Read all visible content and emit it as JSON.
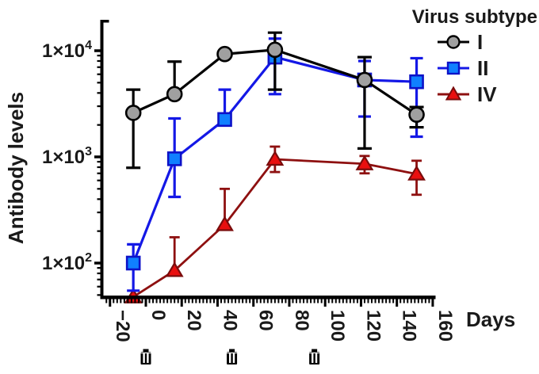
{
  "figure": {
    "x_axis_title": "Days",
    "y_axis_title": "Antibody levels"
  },
  "legend": {
    "title": "Virus subtype",
    "position": "top-right"
  },
  "colors": {
    "axis": "#000000",
    "text": "#1a1a1a",
    "series_I_line": "#000000",
    "series_I_fill": "#a0a0a0",
    "series_II_line": "#1418e6",
    "series_II_fill": "#1080ff",
    "series_IV_line": "#8e1010",
    "series_IV_fill": "#e90f0f",
    "background": "#ffffff"
  },
  "chart_data": {
    "type": "line",
    "title": "",
    "xlabel": "Days",
    "ylabel": "Antibody levels",
    "x_axis": {
      "ticks": [
        -20,
        0,
        20,
        40,
        60,
        80,
        100,
        120,
        140,
        160
      ],
      "minor_tick_step": 2,
      "range": [
        -24,
        161
      ]
    },
    "y_axis": {
      "scale": "log10",
      "ticks": [
        {
          "value": 10000,
          "base": "1×10",
          "exp": "4"
        },
        {
          "value": 1000,
          "base": "1×10",
          "exp": "3"
        },
        {
          "value": 100,
          "base": "1×10",
          "exp": "2"
        }
      ],
      "range": [
        47,
        19000
      ]
    },
    "series": [
      {
        "name": "I",
        "marker": "circle",
        "line_color": "#000000",
        "marker_fill": "#a0a0a0",
        "marker_stroke": "#000000",
        "points": [
          {
            "day": -7,
            "value": 2600,
            "err_lo": 790,
            "err_hi": 4300
          },
          {
            "day": 16,
            "value": 3900,
            "err_lo": null,
            "err_hi": 7900
          },
          {
            "day": 44,
            "value": 9300,
            "err_lo": null,
            "err_hi": null
          },
          {
            "day": 72,
            "value": 10200,
            "err_lo": 4300,
            "err_hi": 14800
          },
          {
            "day": 122,
            "value": 5300,
            "err_lo": 1200,
            "err_hi": 8700
          },
          {
            "day": 151,
            "value": 2500,
            "err_lo": 1900,
            "err_hi": 2950
          }
        ]
      },
      {
        "name": "II",
        "marker": "square",
        "line_color": "#1418e6",
        "marker_fill": "#1080ff",
        "marker_stroke": "#0d12c8",
        "points": [
          {
            "day": -7,
            "value": 100,
            "err_lo": 55,
            "err_hi": 150
          },
          {
            "day": 16,
            "value": 960,
            "err_lo": 420,
            "err_hi": 2300
          },
          {
            "day": 44,
            "value": 2250,
            "err_lo": null,
            "err_hi": 4300
          },
          {
            "day": 72,
            "value": 8700,
            "err_lo": 3900,
            "err_hi": 13000
          },
          {
            "day": 122,
            "value": 5300,
            "err_lo": 2400,
            "err_hi": 8000
          },
          {
            "day": 151,
            "value": 5100,
            "err_lo": 1550,
            "err_hi": 8500
          }
        ]
      },
      {
        "name": "IV",
        "marker": "triangle",
        "line_color": "#8e1010",
        "marker_fill": "#e90f0f",
        "marker_stroke": "#7a0c0c",
        "points": [
          {
            "day": -7,
            "value": 48,
            "err_lo": null,
            "err_hi": null
          },
          {
            "day": 16,
            "value": 85,
            "err_lo": null,
            "err_hi": 175
          },
          {
            "day": 44,
            "value": 230,
            "err_lo": null,
            "err_hi": 500
          },
          {
            "day": 72,
            "value": 950,
            "err_lo": 720,
            "err_hi": 1250
          },
          {
            "day": 122,
            "value": 860,
            "err_lo": 700,
            "err_hi": 1020
          },
          {
            "day": 151,
            "value": 690,
            "err_lo": 440,
            "err_hi": 920
          }
        ]
      }
    ],
    "annotations": {
      "vaccination_icon": "vaccine-vial-icon",
      "vaccination_days": [
        0,
        48,
        94
      ]
    },
    "legend_position": "top-right",
    "grid": false
  }
}
